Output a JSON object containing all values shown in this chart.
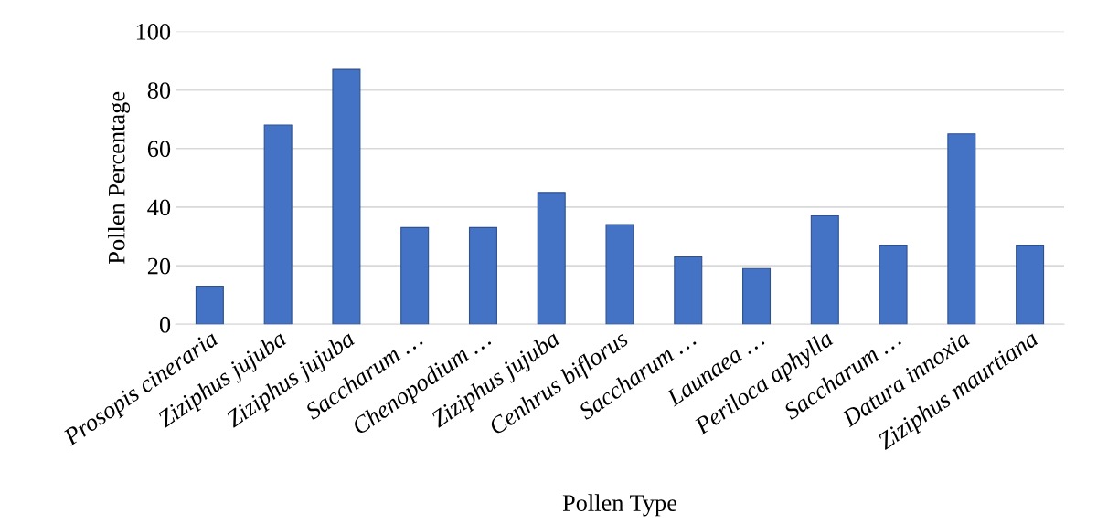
{
  "chart_data": {
    "type": "bar",
    "xlabel": "Pollen Type",
    "ylabel": "Pollen Percentage",
    "categories": [
      "Prosopis cineraria",
      "Ziziphus jujuba",
      "Ziziphus jujuba",
      "Saccharum …",
      "Chenopodium …",
      "Ziziphus jujuba",
      "Cenhrus biflorus",
      "Saccharum …",
      "Launaea …",
      "Periloca aphylla",
      "Saccharum …",
      "Datura innoxia",
      "Ziziphus maurtiana"
    ],
    "values": [
      13,
      68,
      87,
      33,
      33,
      45,
      34,
      23,
      19,
      37,
      27,
      65,
      27
    ],
    "color": "#4472c4",
    "ylim": [
      0,
      100
    ],
    "yticks": [
      0,
      20,
      40,
      60,
      80,
      100
    ],
    "grid": "y"
  }
}
